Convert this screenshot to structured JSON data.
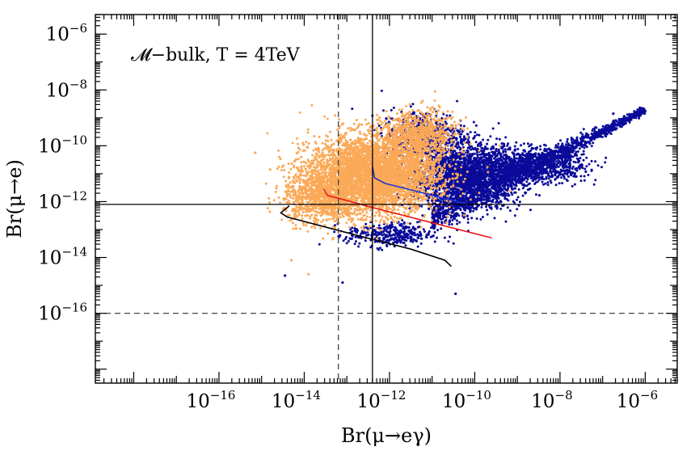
{
  "chart_data": {
    "type": "scatter",
    "title": "",
    "annotation": "𝓜−bulk, T = 4TeV",
    "xlabel": "Br(μ→eγ)",
    "ylabel": "Br(μ→e)",
    "xscale": "log",
    "yscale": "log",
    "xlim_log10": [
      -18.9,
      -5.25
    ],
    "ylim_log10": [
      -18.5,
      -5.3
    ],
    "x_ticks": [
      {
        "exp": -16,
        "label": "10",
        "sup": "−16"
      },
      {
        "exp": -14,
        "label": "10",
        "sup": "−14"
      },
      {
        "exp": -12,
        "label": "10",
        "sup": "−12"
      },
      {
        "exp": -10,
        "label": "10",
        "sup": "−10"
      },
      {
        "exp": -8,
        "label": "10",
        "sup": "−8"
      },
      {
        "exp": -6,
        "label": "10",
        "sup": "−6"
      }
    ],
    "y_ticks": [
      {
        "exp": -6,
        "label": "10",
        "sup": "−6"
      },
      {
        "exp": -8,
        "label": "10",
        "sup": "−8"
      },
      {
        "exp": -10,
        "label": "10",
        "sup": "−10"
      },
      {
        "exp": -12,
        "label": "10",
        "sup": "−12"
      },
      {
        "exp": -14,
        "label": "10",
        "sup": "−14"
      },
      {
        "exp": -16,
        "label": "10",
        "sup": "−16"
      }
    ],
    "reference_lines": [
      {
        "orientation": "vertical",
        "log10_value": -13.2,
        "style": "dashed",
        "color": "#444444"
      },
      {
        "orientation": "vertical",
        "log10_value": -12.4,
        "style": "solid",
        "color": "#000000"
      },
      {
        "orientation": "horizontal",
        "log10_value": -12.1,
        "style": "solid",
        "color": "#000000"
      },
      {
        "orientation": "horizontal",
        "log10_value": -16.0,
        "style": "dashed",
        "color": "#444444"
      }
    ],
    "series": [
      {
        "name": "blue points",
        "kind": "scatter-cloud",
        "color": "#0a0a9a",
        "regions": [
          {
            "x_center": -10.2,
            "y_center": -11.1,
            "x_spread": 1.15,
            "y_spread": 1.05,
            "count": 2200
          },
          {
            "x_center": -8.6,
            "y_center": -10.7,
            "x_spread": 1.1,
            "y_spread": 0.55,
            "count": 900
          },
          {
            "x_center": -12.0,
            "y_center": -13.2,
            "x_spread": 0.9,
            "y_spread": 0.4,
            "count": 350
          },
          {
            "x_center": -11.2,
            "y_center": -9.6,
            "x_spread": 0.9,
            "y_spread": 0.8,
            "count": 500
          }
        ],
        "ridge": {
          "from": [
            -11.0,
            -12.6
          ],
          "to": [
            -6.0,
            -8.7
          ],
          "count": 1400,
          "width": 0.22
        },
        "outliers": [
          [
            -6.0,
            -8.75
          ],
          [
            -6.75,
            -8.85
          ],
          [
            -14.45,
            -14.65
          ],
          [
            -10.45,
            -15.3
          ],
          [
            -13.1,
            -14.9
          ]
        ]
      },
      {
        "name": "orange points",
        "kind": "scatter-cloud",
        "color": "#fba957",
        "regions": [
          {
            "x_center": -12.35,
            "y_center": -11.0,
            "x_spread": 1.35,
            "y_spread": 1.25,
            "count": 4200
          },
          {
            "x_center": -13.6,
            "y_center": -11.8,
            "x_spread": 0.8,
            "y_spread": 0.9,
            "count": 900
          },
          {
            "x_center": -11.3,
            "y_center": -9.6,
            "x_spread": 0.8,
            "y_spread": 0.8,
            "count": 700
          }
        ],
        "outliers": [
          [
            -15.15,
            -10.25
          ],
          [
            -14.8,
            -10.85
          ],
          [
            -14.3,
            -14.1
          ],
          [
            -13.9,
            -14.6
          ]
        ]
      }
    ],
    "curves": [
      {
        "name": "blue curve",
        "color": "#2233cc",
        "points": [
          [
            -12.4,
            -10.75
          ],
          [
            -12.35,
            -11.15
          ],
          [
            -12.1,
            -11.35
          ],
          [
            -11.5,
            -11.58
          ],
          [
            -10.9,
            -11.82
          ],
          [
            -10.2,
            -12.08
          ]
        ]
      },
      {
        "name": "red curve",
        "color": "#e8191c",
        "points": [
          [
            -13.55,
            -11.55
          ],
          [
            -13.45,
            -11.78
          ],
          [
            -13.1,
            -11.92
          ],
          [
            -12.3,
            -12.25
          ],
          [
            -11.4,
            -12.6
          ],
          [
            -10.5,
            -12.95
          ],
          [
            -9.6,
            -13.3
          ]
        ]
      },
      {
        "name": "black curve",
        "color": "#000000",
        "points": [
          [
            -14.35,
            -12.15
          ],
          [
            -14.55,
            -12.4
          ],
          [
            -14.4,
            -12.55
          ],
          [
            -13.4,
            -12.95
          ],
          [
            -12.4,
            -13.35
          ],
          [
            -11.5,
            -13.7
          ],
          [
            -10.7,
            -14.1
          ],
          [
            -10.55,
            -14.32
          ]
        ]
      }
    ]
  }
}
